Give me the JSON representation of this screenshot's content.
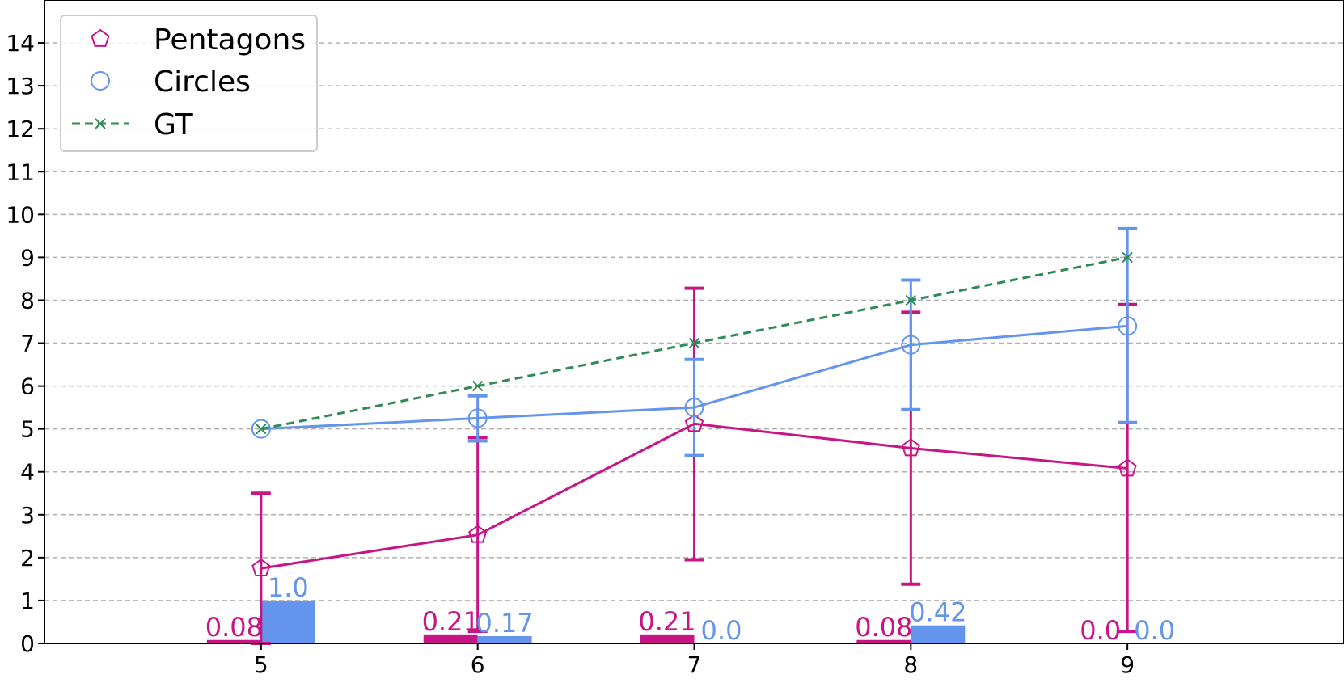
{
  "chart_data": {
    "type": "line",
    "x": [
      5,
      6,
      7,
      8,
      9
    ],
    "xlim": [
      4,
      10
    ],
    "ylim": [
      0,
      15
    ],
    "yticks": [
      0,
      1,
      2,
      3,
      4,
      5,
      6,
      7,
      8,
      9,
      10,
      11,
      12,
      13,
      14
    ],
    "grid": "horizontal dashed",
    "legend_position": "top-left",
    "series": [
      {
        "name": "Pentagons",
        "color": "#c71585",
        "marker": "pentagon",
        "line_style": "solid",
        "values": [
          1.75,
          2.53,
          5.12,
          4.55,
          4.08
        ],
        "error_low": [
          0.0,
          0.28,
          1.95,
          1.38,
          0.28
        ],
        "error_high": [
          3.5,
          4.8,
          8.28,
          7.72,
          7.9
        ],
        "bar_values": [
          0.08,
          0.21,
          0.21,
          0.08,
          0.0
        ],
        "bar_labels": [
          "0.08",
          "0.21",
          "0.21",
          "0.08",
          "0.0"
        ]
      },
      {
        "name": "Circles",
        "color": "#6495ed",
        "marker": "circle",
        "line_style": "solid",
        "values": [
          5.0,
          5.25,
          5.5,
          6.96,
          7.4
        ],
        "error_low": [
          5.0,
          4.72,
          4.38,
          5.45,
          5.15
        ],
        "error_high": [
          5.0,
          5.77,
          6.62,
          8.47,
          9.67
        ],
        "bar_values": [
          1.0,
          0.17,
          0.0,
          0.42,
          0.0
        ],
        "bar_labels": [
          "1.0",
          "0.17",
          "0.0",
          "0.42",
          "0.0"
        ]
      },
      {
        "name": "GT",
        "color": "#2e8b57",
        "marker": "x",
        "line_style": "dashed",
        "values": [
          5,
          6,
          7,
          8,
          9
        ]
      }
    ]
  }
}
